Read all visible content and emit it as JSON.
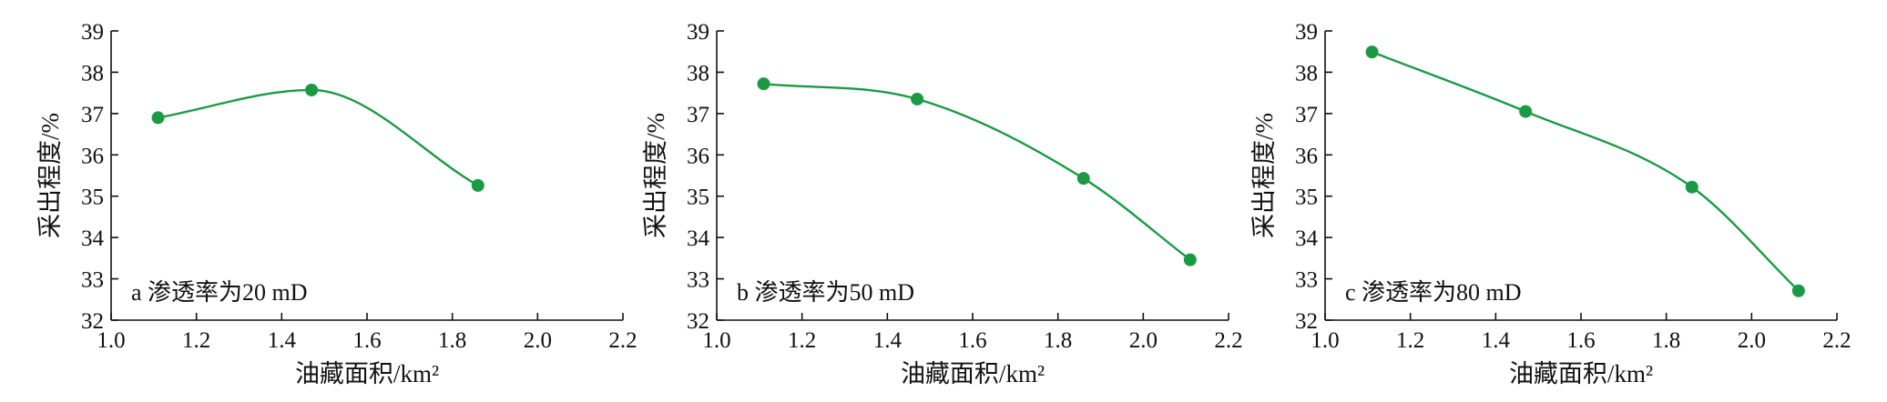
{
  "chart_data": [
    {
      "type": "line",
      "annotation": "a 渗透率为20 mD",
      "xlabel": "油藏面积/km²",
      "ylabel": "采出程度/%",
      "xlim": [
        1.0,
        2.2
      ],
      "ylim": [
        32,
        39
      ],
      "xticks": [
        "1.0",
        "1.2",
        "1.4",
        "1.6",
        "1.8",
        "2.0",
        "2.2"
      ],
      "yticks": [
        "32",
        "33",
        "34",
        "35",
        "36",
        "37",
        "38",
        "39"
      ],
      "grid": false,
      "color": "#1a9a45",
      "series": [
        {
          "x": [
            1.11,
            1.47,
            1.86
          ],
          "y": [
            36.9,
            37.57,
            35.26
          ]
        }
      ]
    },
    {
      "type": "line",
      "annotation": "b 渗透率为50 mD",
      "xlabel": "油藏面积/km²",
      "ylabel": "采出程度/%",
      "xlim": [
        1.0,
        2.2
      ],
      "ylim": [
        32,
        39
      ],
      "xticks": [
        "1.0",
        "1.2",
        "1.4",
        "1.6",
        "1.8",
        "2.0",
        "2.2"
      ],
      "yticks": [
        "32",
        "33",
        "34",
        "35",
        "36",
        "37",
        "38",
        "39"
      ],
      "grid": false,
      "color": "#1a9a45",
      "series": [
        {
          "x": [
            1.11,
            1.47,
            1.86,
            2.11
          ],
          "y": [
            37.72,
            37.35,
            35.43,
            33.46
          ]
        }
      ]
    },
    {
      "type": "line",
      "annotation": "c 渗透率为80 mD",
      "xlabel": "油藏面积/km²",
      "ylabel": "采出程度/%",
      "xlim": [
        1.0,
        2.2
      ],
      "ylim": [
        32,
        39
      ],
      "xticks": [
        "1.0",
        "1.2",
        "1.4",
        "1.6",
        "1.8",
        "2.0",
        "2.2"
      ],
      "yticks": [
        "32",
        "33",
        "34",
        "35",
        "36",
        "37",
        "38",
        "39"
      ],
      "grid": false,
      "color": "#1a9a45",
      "series": [
        {
          "x": [
            1.11,
            1.47,
            1.86,
            2.11
          ],
          "y": [
            38.49,
            37.05,
            35.22,
            32.71
          ]
        }
      ]
    }
  ]
}
